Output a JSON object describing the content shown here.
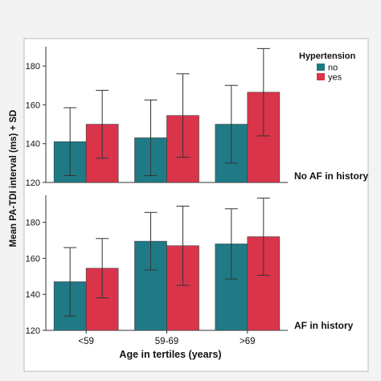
{
  "colors": {
    "no": "#1f7a86",
    "yes": "#d9344a",
    "frame": "#ffffff",
    "background": "#f3f3f3",
    "text": "#111111"
  },
  "y_axis_label": "Mean PA-TDI interval (ms) + SD",
  "x_axis_label": "Age in tertiles (years)",
  "legend": {
    "title": "Hypertension",
    "items": [
      {
        "key": "no",
        "label": "no"
      },
      {
        "key": "yes",
        "label": "yes"
      }
    ]
  },
  "chart_data": [
    {
      "type": "bar",
      "panel_label": "No AF in history",
      "categories": [
        "<59",
        "59-69",
        ">69"
      ],
      "series": [
        {
          "name": "no",
          "values": [
            141,
            143,
            150
          ],
          "sd": [
            17.5,
            19.5,
            20
          ]
        },
        {
          "name": "yes",
          "values": [
            150,
            154.5,
            166.5
          ],
          "sd": [
            17.5,
            21.5,
            22.5
          ]
        }
      ],
      "ylim": [
        120,
        190
      ],
      "yticks": [
        120,
        140,
        160,
        180
      ],
      "grid": false,
      "legend_position": "top-right"
    },
    {
      "type": "bar",
      "panel_label": "AF in history",
      "categories": [
        "<59",
        "59-69",
        ">69"
      ],
      "series": [
        {
          "name": "no",
          "values": [
            147,
            169.5,
            168
          ],
          "sd": [
            19,
            16,
            19.5
          ]
        },
        {
          "name": "yes",
          "values": [
            154.5,
            167,
            172
          ],
          "sd": [
            16.5,
            22,
            21.5
          ]
        }
      ],
      "ylim": [
        120,
        195
      ],
      "yticks": [
        120,
        140,
        160,
        180
      ],
      "grid": false
    }
  ]
}
